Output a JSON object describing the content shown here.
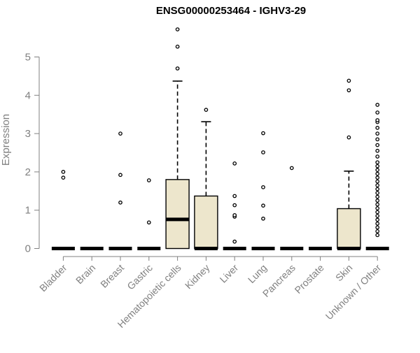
{
  "chart_data": {
    "type": "box",
    "title": "ENSG00000253464 - IGHV3-29",
    "xlabel": "",
    "ylabel": "Expression",
    "ylim": [
      0,
      5.75
    ],
    "yticks": [
      0,
      1,
      2,
      3,
      4,
      5
    ],
    "grid": false,
    "colors": {
      "box_fill": "#ede6cc",
      "stroke": "#000000",
      "axis_text": "#808080"
    },
    "categories": [
      "Bladder",
      "Brain",
      "Breast",
      "Gastric",
      "Hematopoietic cells",
      "Kidney",
      "Liver",
      "Lung",
      "Pancreas",
      "Prostate",
      "Skin",
      "Unknown / Other"
    ],
    "boxes": [
      {
        "category": "Bladder",
        "q1": 0,
        "median": 0,
        "q3": 0,
        "whisker_low": 0,
        "whisker_high": 0,
        "outliers": [
          1.85,
          2.0
        ]
      },
      {
        "category": "Brain",
        "q1": 0,
        "median": 0,
        "q3": 0,
        "whisker_low": 0,
        "whisker_high": 0,
        "outliers": []
      },
      {
        "category": "Breast",
        "q1": 0,
        "median": 0,
        "q3": 0,
        "whisker_low": 0,
        "whisker_high": 0,
        "outliers": [
          1.2,
          1.92,
          3.0
        ]
      },
      {
        "category": "Gastric",
        "q1": 0,
        "median": 0,
        "q3": 0,
        "whisker_low": 0,
        "whisker_high": 0,
        "outliers": [
          0.68,
          1.78
        ]
      },
      {
        "category": "Hematopoietic cells",
        "q1": 0,
        "median": 0.76,
        "q3": 1.8,
        "whisker_low": 0,
        "whisker_high": 4.37,
        "outliers": [
          4.7,
          5.27,
          5.72
        ]
      },
      {
        "category": "Kidney",
        "q1": 0,
        "median": 0,
        "q3": 1.37,
        "whisker_low": 0,
        "whisker_high": 3.31,
        "outliers": [
          3.62
        ]
      },
      {
        "category": "Liver",
        "q1": 0,
        "median": 0,
        "q3": 0,
        "whisker_low": 0,
        "whisker_high": 0,
        "outliers": [
          0.18,
          0.83,
          0.87,
          1.13,
          1.37,
          2.22
        ]
      },
      {
        "category": "Lung",
        "q1": 0,
        "median": 0,
        "q3": 0,
        "whisker_low": 0,
        "whisker_high": 0,
        "outliers": [
          0.78,
          1.12,
          1.6,
          2.51,
          3.01
        ]
      },
      {
        "category": "Pancreas",
        "q1": 0,
        "median": 0,
        "q3": 0,
        "whisker_low": 0,
        "whisker_high": 0,
        "outliers": [
          2.1
        ]
      },
      {
        "category": "Prostate",
        "q1": 0,
        "median": 0,
        "q3": 0,
        "whisker_low": 0,
        "whisker_high": 0,
        "outliers": []
      },
      {
        "category": "Skin",
        "q1": 0,
        "median": 0,
        "q3": 1.04,
        "whisker_low": 0,
        "whisker_high": 2.02,
        "outliers": [
          2.9,
          4.13,
          4.38
        ]
      },
      {
        "category": "Unknown / Other",
        "q1": 0,
        "median": 0,
        "q3": 0,
        "whisker_low": 0,
        "whisker_high": 0,
        "outliers": [
          0.35,
          0.45,
          0.55,
          0.65,
          0.75,
          0.85,
          0.95,
          1.05,
          1.15,
          1.25,
          1.35,
          1.45,
          1.55,
          1.65,
          1.75,
          1.85,
          1.95,
          2.05,
          2.15,
          2.25,
          2.4,
          2.55,
          2.7,
          2.85,
          3.0,
          3.15,
          3.3,
          3.35,
          3.55,
          3.75
        ]
      }
    ]
  }
}
